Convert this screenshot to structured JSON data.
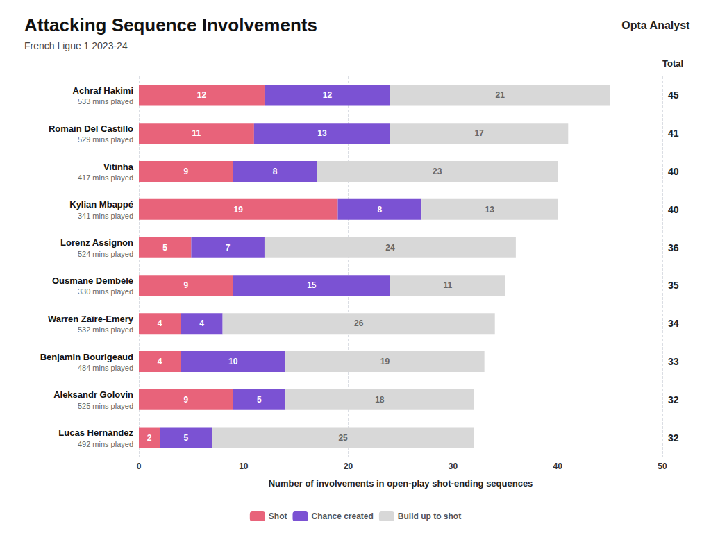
{
  "chart_data": {
    "type": "bar",
    "orientation": "horizontal",
    "stacked": true,
    "title": "Attacking Sequence Involvements",
    "subtitle": "French Ligue 1 2023-24",
    "xlabel": "Number of involvements in open-play shot-ending sequences",
    "categories": [
      "Achraf Hakimi",
      "Romain Del Castillo",
      "Vitinha",
      "Kylian Mbappé",
      "Lorenz Assignon",
      "Ousmane Dembélé",
      "Warren Zaïre-Emery",
      "Benjamin Bourigeaud",
      "Aleksandr Golovin",
      "Lucas Hernández"
    ],
    "minutes_played": [
      "533 mins played",
      "529 mins played",
      "417 mins played",
      "341 mins played",
      "524 mins played",
      "330 mins played",
      "532 mins played",
      "484 mins played",
      "525 mins played",
      "492 mins played"
    ],
    "series": [
      {
        "name": "Shot",
        "color": "#e8637a",
        "values": [
          12,
          11,
          9,
          19,
          5,
          9,
          4,
          4,
          9,
          2
        ]
      },
      {
        "name": "Chance created",
        "color": "#7b52d3",
        "values": [
          12,
          13,
          8,
          8,
          7,
          15,
          4,
          10,
          5,
          5
        ]
      },
      {
        "name": "Build up to shot",
        "color": "#d8d8d8",
        "values": [
          21,
          17,
          23,
          13,
          24,
          11,
          26,
          19,
          18,
          25
        ]
      }
    ],
    "totals": [
      45,
      41,
      40,
      40,
      36,
      35,
      34,
      33,
      32,
      32
    ],
    "total_label": "Total",
    "branding": "Opta Analyst",
    "xlim": [
      0,
      50
    ],
    "xticks": [
      0,
      10,
      20,
      30,
      40,
      50
    ],
    "grid": true,
    "data_labels": true,
    "legend": "bottom"
  }
}
